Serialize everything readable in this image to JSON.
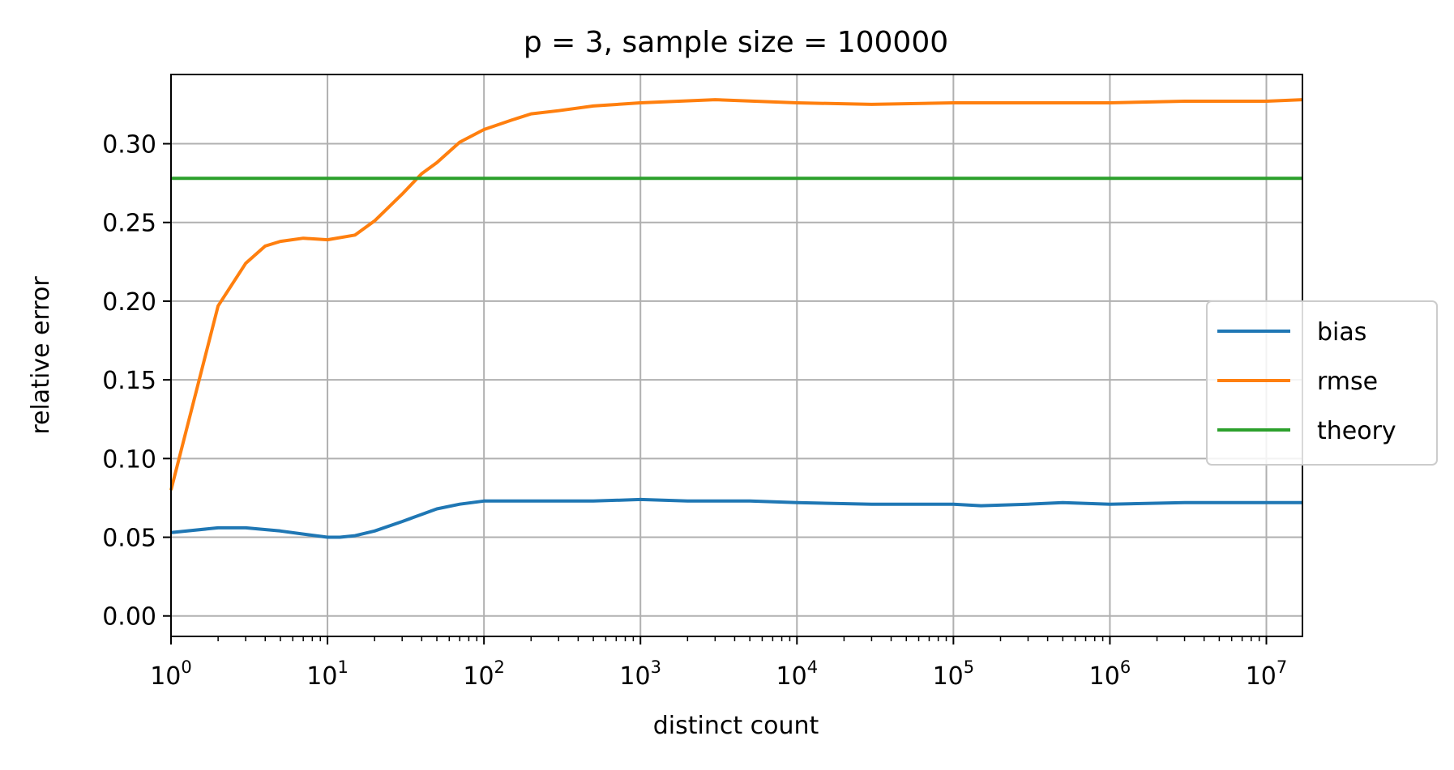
{
  "chart_data": {
    "type": "line",
    "title": "p = 3, sample size = 100000",
    "xlabel": "distinct count",
    "ylabel": "relative error",
    "xscale": "log",
    "xlim": [
      1,
      17000000
    ],
    "ylim": [
      -0.013,
      0.344
    ],
    "grid": true,
    "legend_position": "right",
    "x_ticks": [
      {
        "base": "10",
        "exp": "0"
      },
      {
        "base": "10",
        "exp": "1"
      },
      {
        "base": "10",
        "exp": "2"
      },
      {
        "base": "10",
        "exp": "3"
      },
      {
        "base": "10",
        "exp": "4"
      },
      {
        "base": "10",
        "exp": "5"
      },
      {
        "base": "10",
        "exp": "6"
      },
      {
        "base": "10",
        "exp": "7"
      }
    ],
    "y_ticks": [
      "0.00",
      "0.05",
      "0.10",
      "0.15",
      "0.20",
      "0.25",
      "0.30"
    ],
    "series": [
      {
        "name": "bias",
        "color": "#1f77b4",
        "x": [
          1,
          2,
          3,
          5,
          7,
          10,
          12,
          15,
          20,
          30,
          50,
          70,
          100,
          200,
          500,
          1000,
          2000,
          5000,
          10000,
          30000,
          100000,
          150000,
          300000,
          500000,
          1000000,
          3000000,
          10000000,
          17000000
        ],
        "y": [
          0.053,
          0.056,
          0.056,
          0.054,
          0.052,
          0.05,
          0.05,
          0.051,
          0.054,
          0.06,
          0.068,
          0.071,
          0.073,
          0.073,
          0.073,
          0.074,
          0.073,
          0.073,
          0.072,
          0.071,
          0.071,
          0.07,
          0.071,
          0.072,
          0.071,
          0.072,
          0.072,
          0.072
        ]
      },
      {
        "name": "rmse",
        "color": "#ff7f0e",
        "x": [
          1,
          2,
          3,
          4,
          5,
          7,
          10,
          15,
          20,
          30,
          40,
          50,
          70,
          100,
          150,
          200,
          300,
          500,
          1000,
          3000,
          10000,
          30000,
          100000,
          300000,
          1000000,
          3000000,
          10000000,
          17000000
        ],
        "y": [
          0.08,
          0.197,
          0.224,
          0.235,
          0.238,
          0.24,
          0.239,
          0.242,
          0.251,
          0.268,
          0.281,
          0.288,
          0.301,
          0.309,
          0.315,
          0.319,
          0.321,
          0.324,
          0.326,
          0.328,
          0.326,
          0.325,
          0.326,
          0.326,
          0.326,
          0.327,
          0.327,
          0.328
        ]
      },
      {
        "name": "theory",
        "color": "#2ca02c",
        "x": [
          1,
          17000000
        ],
        "y": [
          0.278,
          0.278
        ]
      }
    ]
  }
}
